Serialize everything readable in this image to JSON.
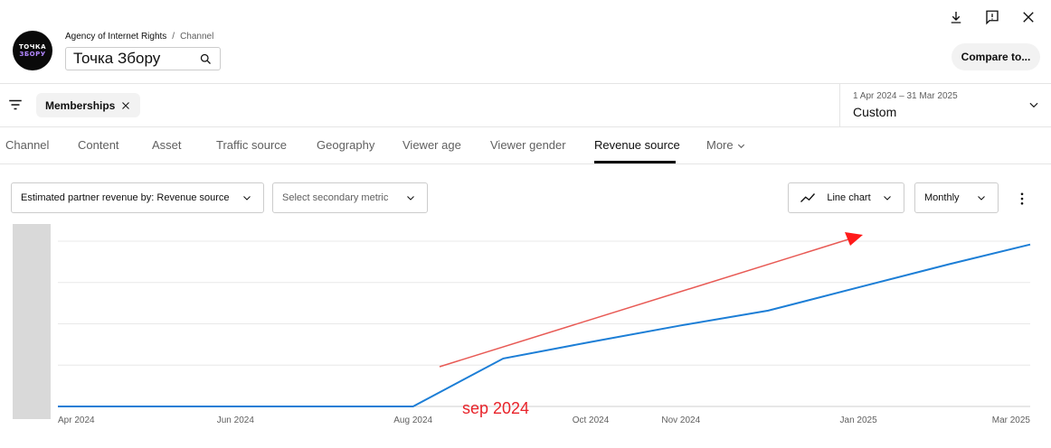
{
  "channel": {
    "owner": "Agency of Internet Rights",
    "separator": "/",
    "label": "Channel",
    "name": "Точка Збору",
    "avatar_lines": [
      "ТОЧКА",
      "ЗБОРУ"
    ]
  },
  "toolbar": {
    "compare_label": "Compare to..."
  },
  "filters": {
    "chip_label": "Memberships"
  },
  "date": {
    "range": "1 Apr 2024 – 31 Mar 2025",
    "preset": "Custom"
  },
  "tabs": [
    {
      "label": "Channel",
      "active": false
    },
    {
      "label": "Content",
      "active": false
    },
    {
      "label": "Asset",
      "active": false
    },
    {
      "label": "Traffic source",
      "active": false
    },
    {
      "label": "Geography",
      "active": false
    },
    {
      "label": "Viewer age",
      "active": false
    },
    {
      "label": "Viewer gender",
      "active": false
    },
    {
      "label": "Revenue source",
      "active": true
    },
    {
      "label": "More",
      "active": false
    }
  ],
  "controls": {
    "primary_metric": "Estimated partner revenue by: Revenue source",
    "secondary_metric_placeholder": "Select secondary metric",
    "chart_type": "Line chart",
    "interval": "Monthly"
  },
  "chart_data": {
    "type": "line",
    "x_ticks": [
      "Apr 2024",
      "Jun 2024",
      "Aug 2024",
      "Oct 2024",
      "Nov 2024",
      "Jan 2025",
      "Mar 2025"
    ],
    "series": [
      {
        "color": "#1c7ed6",
        "points": [
          {
            "x": "2024-04-01",
            "y": 0
          },
          {
            "x": "2024-08-01",
            "y": 0
          },
          {
            "x": "2024-09-01",
            "y": 0.29
          },
          {
            "x": "2024-10-01",
            "y": 0.39
          },
          {
            "x": "2024-11-01",
            "y": 0.49
          },
          {
            "x": "2024-12-01",
            "y": 0.58
          },
          {
            "x": "2025-01-01",
            "y": 0.72
          },
          {
            "x": "2025-02-01",
            "y": 0.86
          },
          {
            "x": "2025-03-01",
            "y": 0.98
          }
        ]
      }
    ],
    "y_range": [
      0,
      1
    ],
    "grid": true,
    "annotation": {
      "text": "sep 2024",
      "color": "#e8232a",
      "arrow_color": "#e85a55"
    }
  }
}
